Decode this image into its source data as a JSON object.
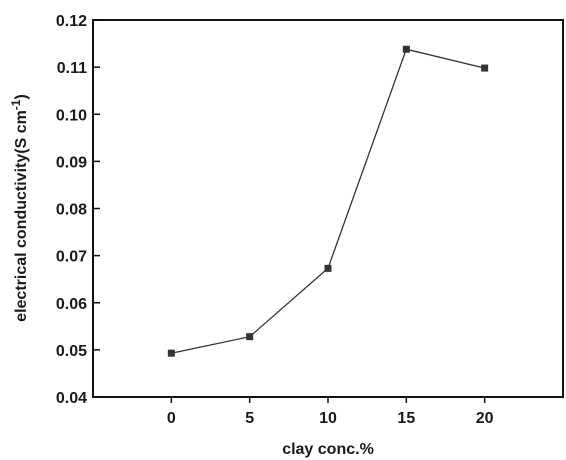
{
  "chart_data": {
    "type": "line",
    "title": "",
    "xlabel": "clay conc.%",
    "ylabel": "electrical conductivity(S cm",
    "ylabel_superscript": "-1",
    "ylabel_close": ")",
    "x": [
      0,
      5,
      10,
      15,
      20
    ],
    "xlim": [
      -5,
      25
    ],
    "ylim": [
      0.04,
      0.12
    ],
    "xticks": [
      0,
      5,
      10,
      15,
      20
    ],
    "xtick_labels": [
      "0",
      "5",
      "10",
      "15",
      "20"
    ],
    "yticks": [
      0.04,
      0.05,
      0.06,
      0.07,
      0.08,
      0.09,
      0.1,
      0.11,
      0.12
    ],
    "ytick_labels": [
      "0.04",
      "0.05",
      "0.06",
      "0.07",
      "0.08",
      "0.09",
      "0.10",
      "0.11",
      "0.12"
    ],
    "series": [
      {
        "values": [
          0.0493,
          0.0528,
          0.0673,
          0.1138,
          0.1098
        ],
        "color": "#333333"
      }
    ],
    "grid": false,
    "legend": "none",
    "marker": "square"
  }
}
